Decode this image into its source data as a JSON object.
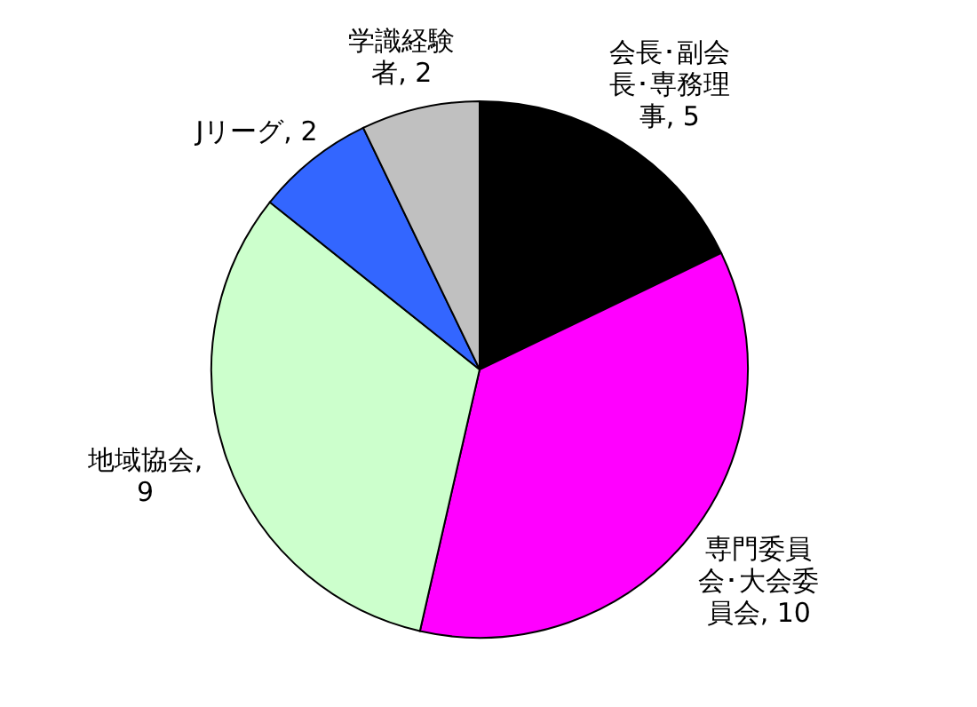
{
  "chart_data": {
    "type": "pie",
    "categories": [
      "会長･副会長･専務理事",
      "専門委員会･大会委員会",
      "地域協会",
      "Jリーグ",
      "学識経験者"
    ],
    "values": [
      5,
      10,
      9,
      2,
      2
    ],
    "colors": [
      "#000000",
      "#ff00ff",
      "#ccffcc",
      "#3366ff",
      "#c0c0c0"
    ],
    "value_labels": [
      ", 5",
      ", 10",
      ", 9",
      ", 2",
      ", 2"
    ]
  }
}
